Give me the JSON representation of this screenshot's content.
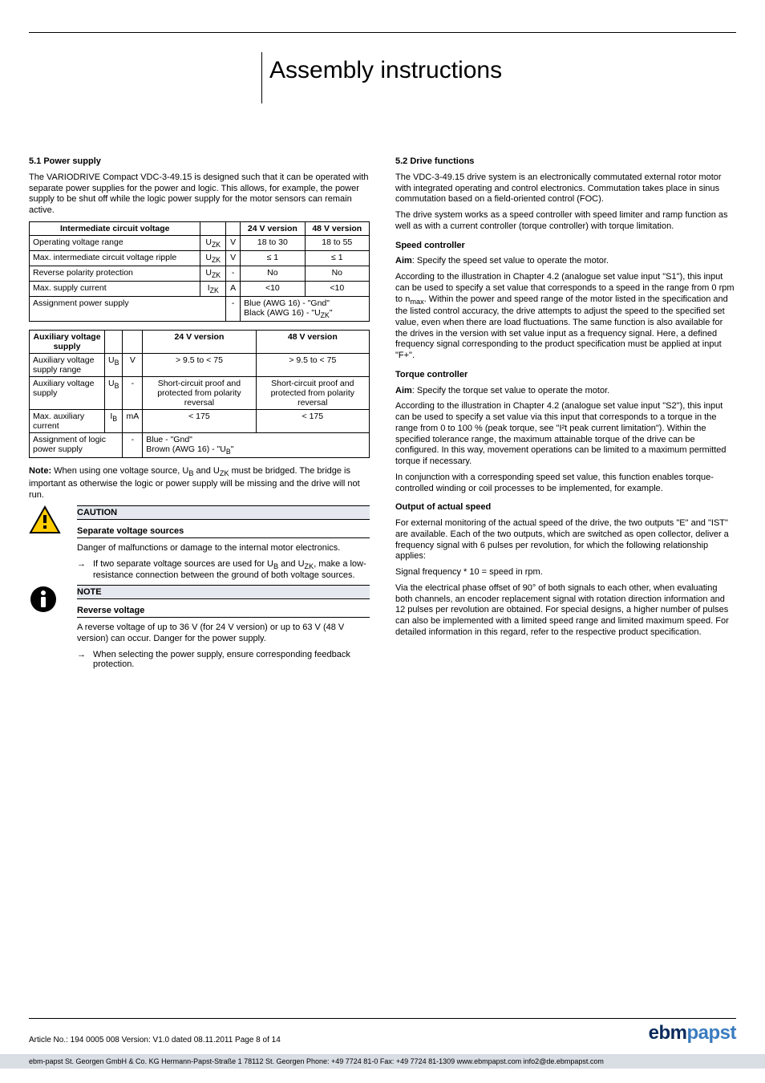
{
  "doc": {
    "title": "Assembly instructions"
  },
  "left": {
    "sec51_num": "5.1 Power supply",
    "sec51_p1": "The VARIODRIVE Compact VDC-3-49.15 is designed such that it can be operated with separate power supplies for the power and logic. This allows, for example, the power supply to be shut off while the logic power supply for the motor sensors can remain active.",
    "t1": {
      "head": [
        "Intermediate circuit voltage",
        "",
        "",
        "24 V version",
        "48 V version"
      ],
      "rows": [
        [
          "Operating voltage range",
          "U<sub>ZK</sub>",
          "V",
          "18 to 30",
          "18 to 55"
        ],
        [
          "Max. intermediate circuit voltage ripple",
          "U<sub>ZK</sub>",
          "V",
          "≤ 1",
          "≤ 1"
        ],
        [
          "Reverse polarity protection",
          "U<sub>ZK</sub>",
          "-",
          "No",
          "No"
        ],
        [
          "Max. supply current",
          "I<sub>ZK</sub>",
          "A",
          "<10",
          "<10"
        ],
        [
          "Assignment power supply",
          "",
          "-",
          "Blue (AWG 16) - \"Gnd\"\nBlack (AWG 16) - \"U<sub>ZK</sub>\"",
          ""
        ]
      ]
    },
    "t2": {
      "head": [
        "Auxiliary voltage supply",
        "",
        "",
        "24 V version",
        "48 V version"
      ],
      "rows": [
        [
          "Auxiliary voltage supply range",
          "U<sub>B</sub>",
          "V",
          "> 9.5 to < 75",
          "> 9.5 to < 75"
        ],
        [
          "Auxiliary voltage supply",
          "U<sub>B</sub>",
          "-",
          "Short-circuit proof and protected from polarity reversal",
          "Short-circuit proof and protected from polarity reversal"
        ],
        [
          "Max. auxiliary current",
          "I<sub>B</sub>",
          "mA",
          "< 175",
          "< 175"
        ],
        [
          "Assignment of logic power supply",
          "",
          "-",
          "Blue - \"Gnd\"\nBrown (AWG 16) - \"U<sub>B</sub>\"",
          ""
        ]
      ]
    },
    "note_bridge_label": "Note:",
    "note_bridge": "When using one voltage source, U<sub>B</sub> and U<sub>ZK</sub> must be bridged. The bridge is important as otherwise the logic or power supply will be missing and the drive will not run.",
    "caution_head": "CAUTION",
    "caution_sub": "Separate voltage sources",
    "caution_p": "Danger of malfunctions or damage to the internal motor electronics.",
    "caution_arrow": "If two separate voltage sources are used for U<sub>B</sub> and U<sub>ZK</sub>, make a low-resistance connection between the ground of both voltage sources.",
    "note2_head": "NOTE",
    "note2_sub": "Reverse voltage",
    "note2_p": "A reverse voltage of up to 36 V (for 24 V version) or up to 63 V (48 V version) can occur. Danger for the power supply.",
    "note2_arrow": "When selecting the power supply, ensure corresponding feedback protection."
  },
  "right": {
    "sec52_num": "5.2 Drive functions",
    "sec52_p1": "The VDC-3-49.15 drive system is an electronically commutated external rotor motor with integrated operating and control electronics. Commutation takes place in sinus commutation based on a field-oriented control (FOC).",
    "sec52_p2": "The drive system works as a speed controller with speed limiter and ramp function as well as with a current controller (torque controller) with torque limitation.",
    "h_speed": "Speed controller",
    "speed_label": "Aim",
    "speed_aim": ": Specify the speed set value to operate the motor.",
    "speed_p": "According to the illustration in Chapter 4.2 (analogue set value input \"S1\"), this input can be used to specify a set value that corresponds to a speed in the range from 0 rpm to n<sub>max</sub>. Within the power and speed range of the motor listed in the specification and the listed control accuracy, the drive attempts to adjust the speed to the specified set value, even when there are load fluctuations. The same function is also available for the drives in the version with set value input as a frequency signal. Here, a defined frequency signal corresponding to the product specification must be applied at input \"F+\".",
    "h_torque": "Torque controller",
    "torque_label": "Aim",
    "torque_aim": ": Specify the torque set value to operate the motor.",
    "torque_p1": "According to the illustration in Chapter 4.2 (analogue set value input \"S2\"), this input can be used to specify a set value via this input that corresponds to a torque in the range from 0 to 100 % (peak torque, see \"I²t peak current limitation\"). Within the specified tolerance range, the maximum attainable torque of the drive can be configured. In this way, movement operations can be limited to a maximum permitted torque if necessary.",
    "torque_p2": "In conjunction with a corresponding speed set value, this function enables torque-controlled winding or coil processes to be implemented, for example.",
    "h_actual": "Output of actual speed",
    "actual_p1": "For external monitoring of the actual speed of the drive, the two outputs \"E\" and \"IST\" are available. Each of the two outputs, which are switched as open collector, deliver a frequency signal with 6 pulses per revolution, for which the following relationship applies:",
    "actual_eq": "Signal frequency * 10 = speed in rpm.",
    "actual_p2": "Via the electrical phase offset of 90° of both signals to each other, when evaluating both channels, an encoder replacement signal with rotation direction information and 12 pulses per revolution are obtained. For special designs, a higher number of pulses can also be implemented with a limited speed range and limited maximum speed. For detailed information in this regard, refer to the respective product specification."
  },
  "footer": {
    "meta": "Article No.: 194 0005 008    Version: V1.0    dated 08.11.2011    Page 8 of 14",
    "bar": "ebm-papst St. Georgen GmbH & Co. KG   Hermann-Papst-Straße 1   78112 St. Georgen   Phone: +49 7724 81-0   Fax: +49 7724 81-1309   www.ebmpapst.com   info2@de.ebmpapst.com",
    "brand1": "ebm",
    "brand2": "papst"
  },
  "icons": {
    "warn_fill": "#ffcc00",
    "warn_stroke": "#000",
    "info_fill": "#000"
  }
}
